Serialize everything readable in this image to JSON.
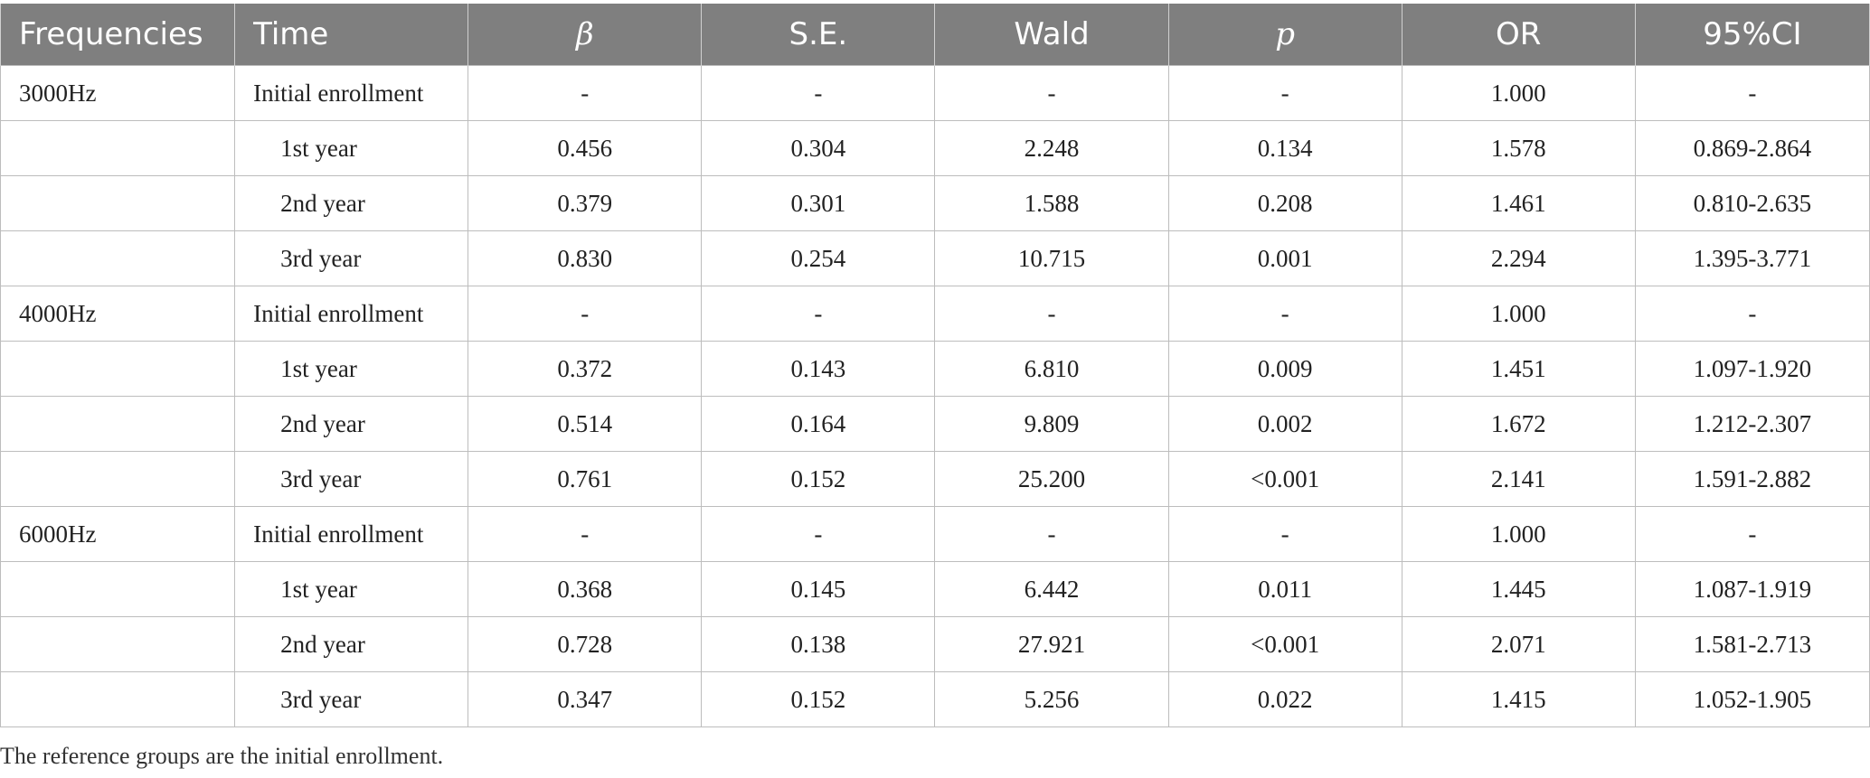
{
  "table": {
    "headers": [
      "Frequencies",
      "Time",
      "β",
      "S.E.",
      "Wald",
      "p",
      "OR",
      "95%CI"
    ],
    "rows": [
      {
        "frequency": "3000Hz",
        "time": "Initial enrollment",
        "beta": "-",
        "se": "-",
        "wald": "-",
        "p": "-",
        "or": "1.000",
        "ci": "-"
      },
      {
        "frequency": "",
        "time": "1st year",
        "beta": "0.456",
        "se": "0.304",
        "wald": "2.248",
        "p": "0.134",
        "or": "1.578",
        "ci": "0.869-2.864"
      },
      {
        "frequency": "",
        "time": "2nd year",
        "beta": "0.379",
        "se": "0.301",
        "wald": "1.588",
        "p": "0.208",
        "or": "1.461",
        "ci": "0.810-2.635"
      },
      {
        "frequency": "",
        "time": "3rd year",
        "beta": "0.830",
        "se": "0.254",
        "wald": "10.715",
        "p": "0.001",
        "or": "2.294",
        "ci": "1.395-3.771"
      },
      {
        "frequency": "4000Hz",
        "time": "Initial enrollment",
        "beta": "-",
        "se": "-",
        "wald": "-",
        "p": "-",
        "or": "1.000",
        "ci": "-"
      },
      {
        "frequency": "",
        "time": "1st year",
        "beta": "0.372",
        "se": "0.143",
        "wald": "6.810",
        "p": "0.009",
        "or": "1.451",
        "ci": "1.097-1.920"
      },
      {
        "frequency": "",
        "time": "2nd year",
        "beta": "0.514",
        "se": "0.164",
        "wald": "9.809",
        "p": "0.002",
        "or": "1.672",
        "ci": "1.212-2.307"
      },
      {
        "frequency": "",
        "time": "3rd year",
        "beta": "0.761",
        "se": "0.152",
        "wald": "25.200",
        "p": "<0.001",
        "or": "2.141",
        "ci": "1.591-2.882"
      },
      {
        "frequency": "6000Hz",
        "time": "Initial enrollment",
        "beta": "-",
        "se": "-",
        "wald": "-",
        "p": "-",
        "or": "1.000",
        "ci": "-"
      },
      {
        "frequency": "",
        "time": "1st year",
        "beta": "0.368",
        "se": "0.145",
        "wald": "6.442",
        "p": "0.011",
        "or": "1.445",
        "ci": "1.087-1.919"
      },
      {
        "frequency": "",
        "time": "2nd year",
        "beta": "0.728",
        "se": "0.138",
        "wald": "27.921",
        "p": "<0.001",
        "or": "2.071",
        "ci": "1.581-2.713"
      },
      {
        "frequency": "",
        "time": "3rd year",
        "beta": "0.347",
        "se": "0.152",
        "wald": "5.256",
        "p": "0.022",
        "or": "1.415",
        "ci": "1.052-1.905"
      }
    ]
  },
  "footnote": "The reference groups are the initial enrollment.",
  "colors": {
    "header_bg": "#7f7f7f",
    "header_text": "#ffffff",
    "border": "#bdbdbd",
    "body_text": "#222222"
  }
}
